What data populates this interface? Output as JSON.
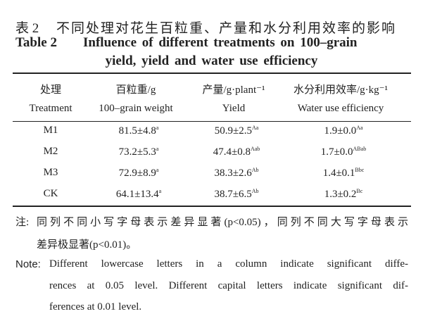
{
  "title": {
    "label_cn": "表 2",
    "text_cn": "不同处理对花生百粒重、产量和水分利用效率的影响",
    "label_en": "Table 2",
    "text_en_lines": [
      "Influence of different treatments on 100–grain",
      "yield, yield and water use efficiency"
    ]
  },
  "table": {
    "header_cn": [
      "处理",
      "百粒重/g",
      "产量/g·plant⁻¹",
      "水分利用效率/g·kg⁻¹"
    ],
    "header_en": [
      "Treatment",
      "100–grain weight",
      "Yield",
      "Water use efficiency"
    ],
    "rows": [
      [
        {
          "text": "M1"
        },
        {
          "text": "81.5±4.8",
          "sup": "a"
        },
        {
          "text": "50.9±2.5",
          "sup": "Aa"
        },
        {
          "text": "1.9±0.0",
          "sup": "Aa"
        }
      ],
      [
        {
          "text": "M2"
        },
        {
          "text": "73.2±5.3",
          "sup": "a"
        },
        {
          "text": "47.4±0.8",
          "sup": "Aab"
        },
        {
          "text": "1.7±0.0",
          "sup": "ABab"
        }
      ],
      [
        {
          "text": "M3"
        },
        {
          "text": "72.9±8.9",
          "sup": "a"
        },
        {
          "text": "38.3±2.6",
          "sup": "Ab"
        },
        {
          "text": "1.4±0.1",
          "sup": "Bbc"
        }
      ],
      [
        {
          "text": "CK"
        },
        {
          "text": "64.1±13.4",
          "sup": "a"
        },
        {
          "text": "38.7±6.5",
          "sup": "Ab"
        },
        {
          "text": "1.3±0.2",
          "sup": "Bc"
        }
      ]
    ]
  },
  "note_cn": {
    "label": "注:",
    "lines": [
      "同列不同小写字母表示差异显著(p<0.05)，同列不同大写字母表示",
      "差异极显著(p<0.01)。"
    ]
  },
  "note_en": {
    "label": "Note:",
    "lines": [
      "Different lowercase letters in a column indicate significant diffe-",
      "rences at 0.05 level. Different capital letters indicate significant dif-",
      "ferences at 0.01 level."
    ]
  }
}
